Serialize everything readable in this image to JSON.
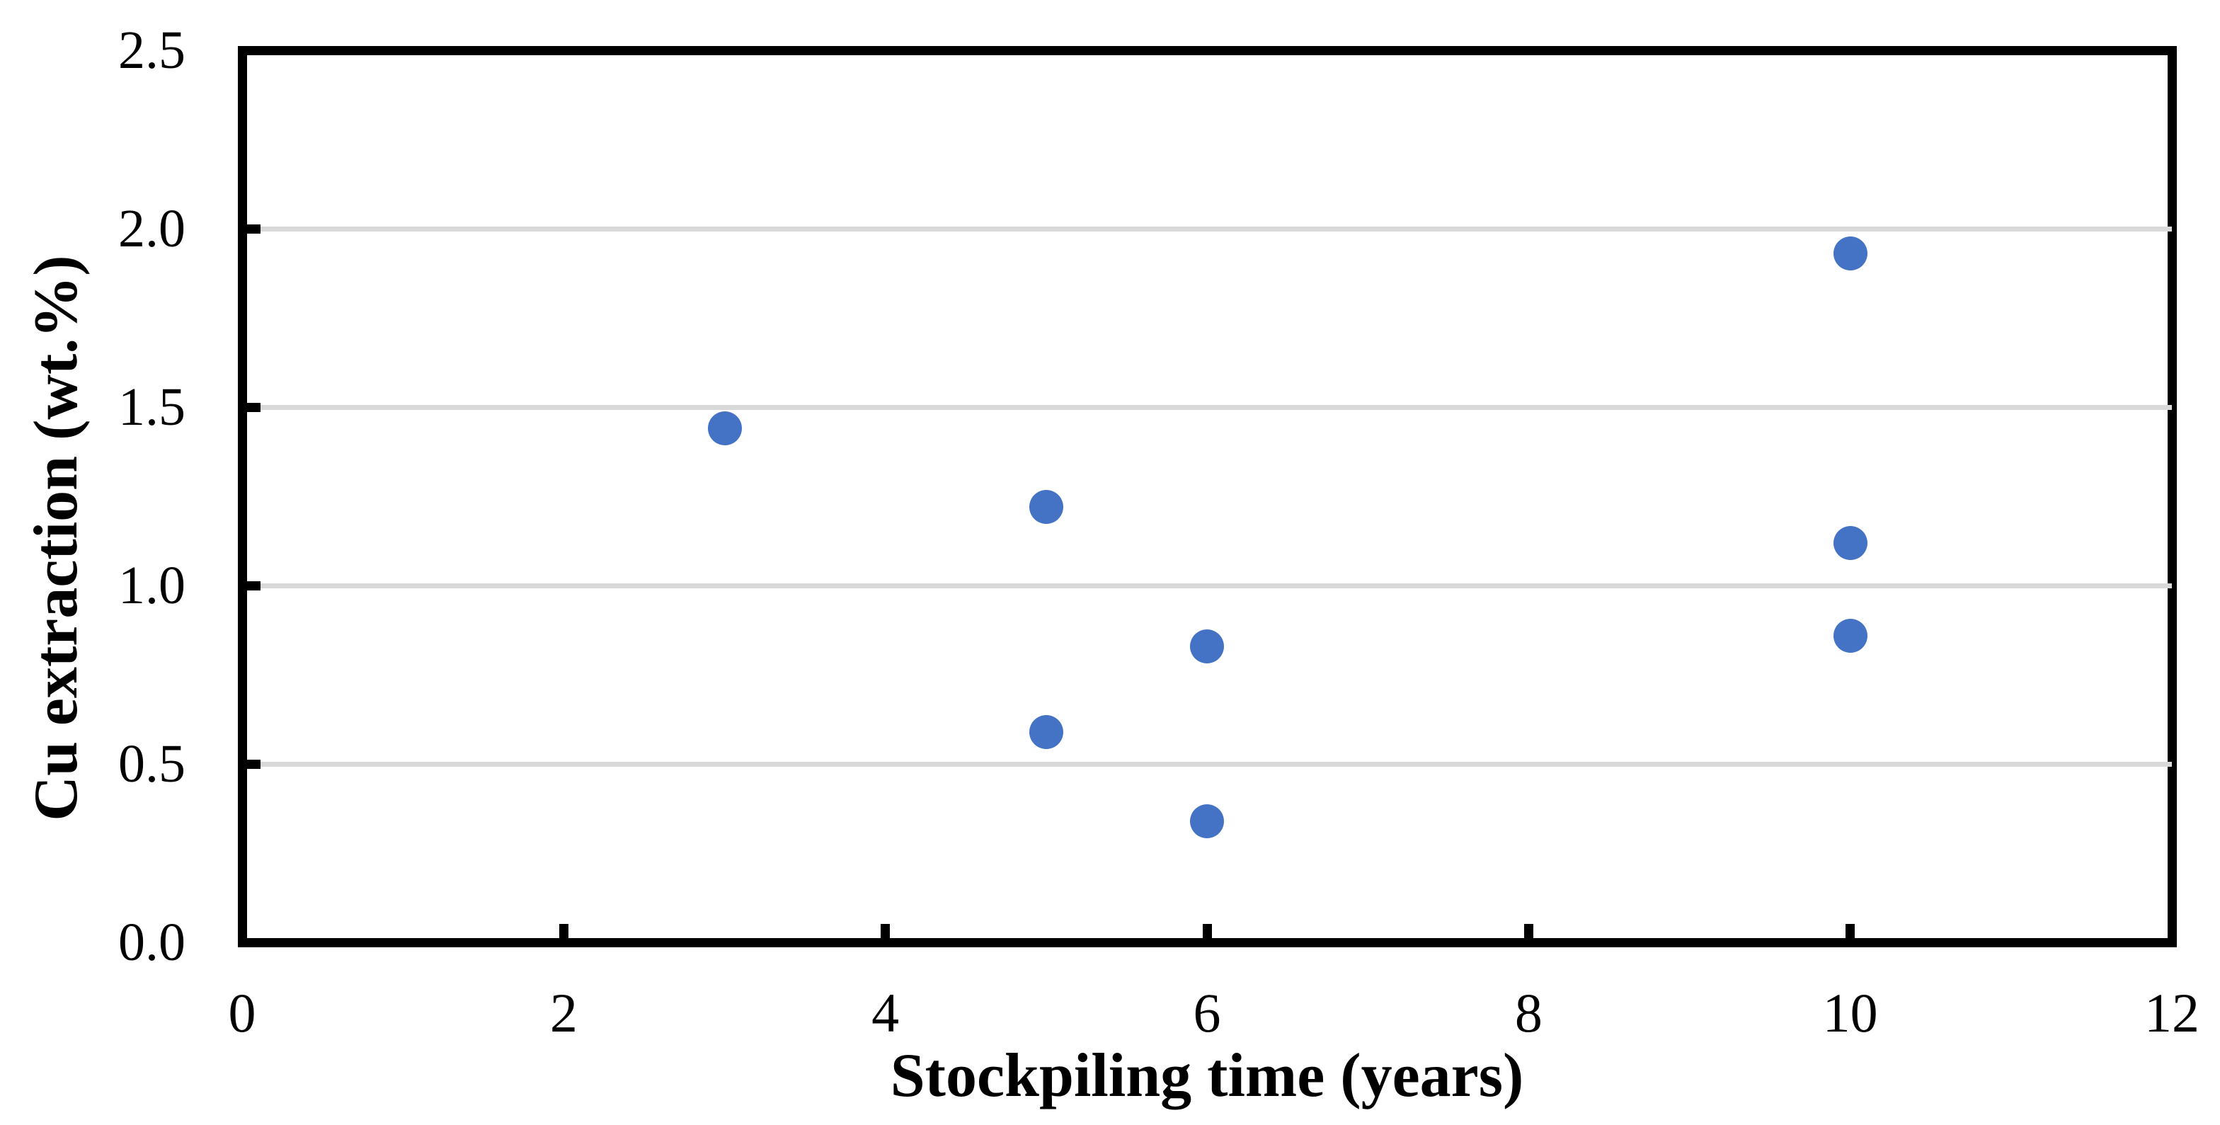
{
  "chart_data": {
    "type": "scatter",
    "title": "",
    "xlabel": "Stockpiling time (years)",
    "ylabel": "Cu extraction (wt.%)",
    "xlim": [
      0,
      12
    ],
    "ylim": [
      0.0,
      2.5
    ],
    "xticks": [
      0,
      2,
      4,
      6,
      8,
      10,
      12
    ],
    "yticks": [
      0.0,
      0.5,
      1.0,
      1.5,
      2.0,
      2.5
    ],
    "ytick_labels": [
      "0.0",
      "0.5",
      "1.0",
      "1.5",
      "2.0",
      "2.5"
    ],
    "grid": "horizontal major gridlines only",
    "tick_style": "major ticks inside, both axes",
    "legend_position": "none",
    "series": [
      {
        "name": "Cu extraction",
        "marker": "circle",
        "color": "#4472C4",
        "points": [
          {
            "x": 3,
            "y": 1.44
          },
          {
            "x": 5,
            "y": 1.22
          },
          {
            "x": 5,
            "y": 0.59
          },
          {
            "x": 6,
            "y": 0.83
          },
          {
            "x": 6,
            "y": 0.34
          },
          {
            "x": 10,
            "y": 1.93
          },
          {
            "x": 10,
            "y": 1.12
          },
          {
            "x": 10,
            "y": 0.86
          }
        ]
      }
    ]
  },
  "style": {
    "marker_color": "#4472C4",
    "gridline_color": "#D9D9D9",
    "axis_color": "#000000",
    "text_color": "#000000",
    "background_color": "#FFFFFF"
  }
}
